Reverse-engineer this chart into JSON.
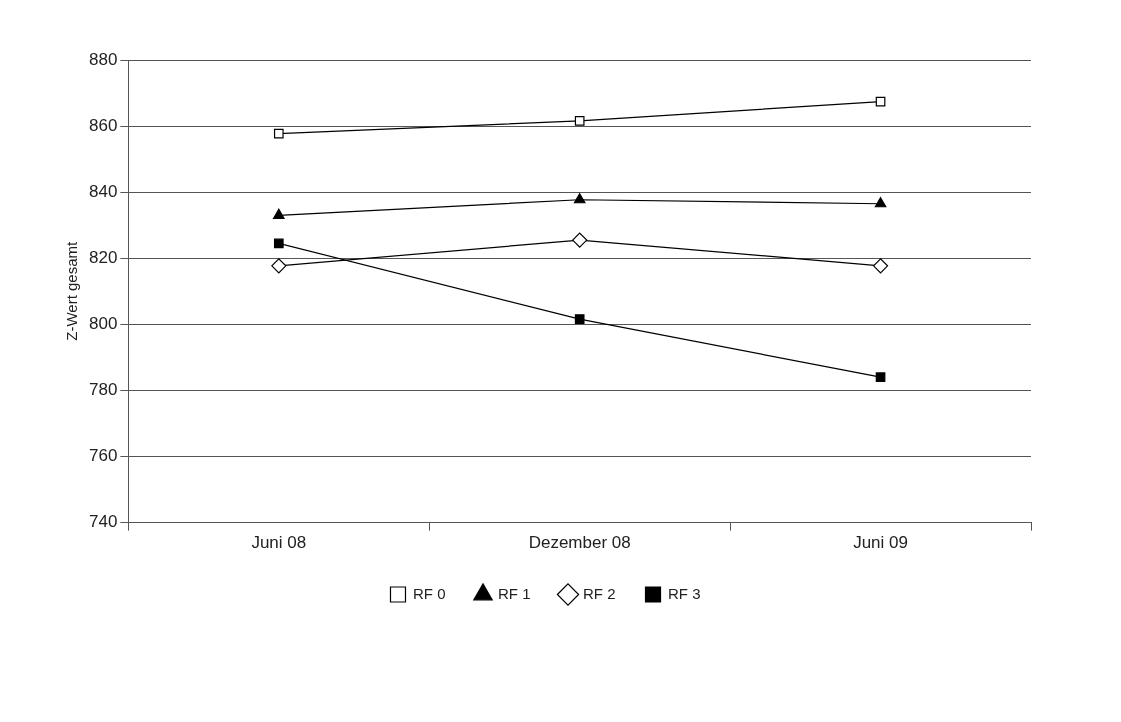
{
  "chart_data": {
    "type": "line",
    "ylabel": "Z-Wert gesamt",
    "categories": [
      "Juni 08",
      "Dezember 08",
      "Juni 09"
    ],
    "series": [
      {
        "name": "RF 0",
        "color": "#000000",
        "marker": "square",
        "values": [
          857.7,
          861.6,
          867.4
        ]
      },
      {
        "name": "RF 1",
        "color": "#000000",
        "marker": "triangle",
        "values": [
          833,
          837.7,
          836.5
        ]
      },
      {
        "name": "RF 2",
        "color": "#000000",
        "marker": "diamond",
        "values": [
          817.7,
          825.5,
          817.7
        ]
      },
      {
        "name": "RF 3",
        "color": "#000000",
        "marker": "square",
        "values": [
          824.5,
          801.6,
          784
        ]
      }
    ],
    "ylim": [
      740,
      880
    ],
    "yticks": [
      740,
      760,
      780,
      800,
      820,
      840,
      860,
      880
    ],
    "grid": "y",
    "legend": "bottom",
    "line_style": "solid"
  }
}
